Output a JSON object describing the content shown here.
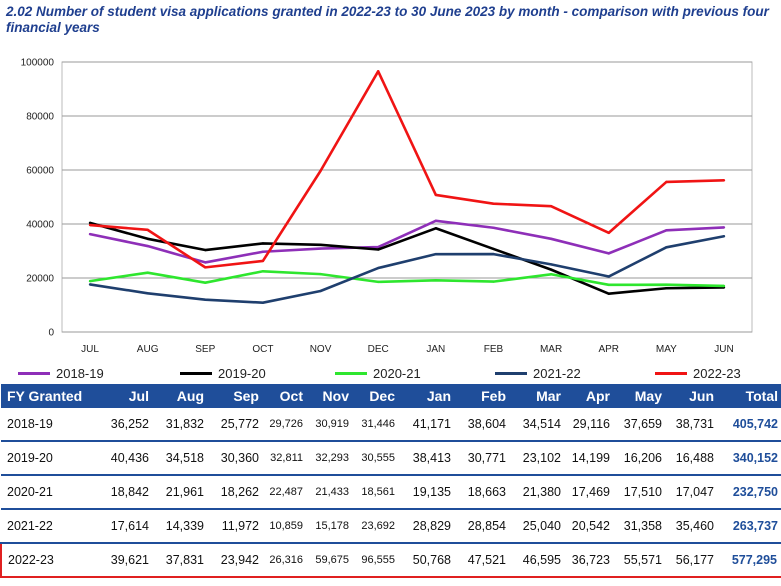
{
  "title": "2.02 Number of student visa applications granted in 2022-23 to 30 June 2023 by month - comparison with previous four financial years",
  "chart_data": {
    "type": "line",
    "categories": [
      "JUL",
      "AUG",
      "SEP",
      "OCT",
      "NOV",
      "DEC",
      "JAN",
      "FEB",
      "MAR",
      "APR",
      "MAY",
      "JUN"
    ],
    "ylim": [
      0,
      100000
    ],
    "yticks": [
      "0",
      "20000",
      "40000",
      "60000",
      "80000",
      "100000"
    ],
    "grid": true,
    "legend_position": "bottom",
    "series": [
      {
        "name": "2018-19",
        "color": "#8e2fb8",
        "values": [
          36252,
          31832,
          25772,
          29726,
          30919,
          31446,
          41171,
          38604,
          34514,
          29116,
          37659,
          38731
        ]
      },
      {
        "name": "2019-20",
        "color": "#000000",
        "values": [
          40436,
          34518,
          30360,
          32811,
          32293,
          30555,
          38413,
          30771,
          23102,
          14199,
          16206,
          16488
        ]
      },
      {
        "name": "2020-21",
        "color": "#2ee62e",
        "values": [
          18842,
          21961,
          18262,
          22487,
          21433,
          18561,
          19135,
          18663,
          21380,
          17469,
          17510,
          17047
        ]
      },
      {
        "name": "2021-22",
        "color": "#1f3f6e",
        "values": [
          17614,
          14339,
          11972,
          10859,
          15178,
          23692,
          28829,
          28854,
          25040,
          20542,
          31358,
          35460
        ]
      },
      {
        "name": "2022-23",
        "color": "#f01414",
        "values": [
          39621,
          37831,
          23942,
          26316,
          59675,
          96555,
          50768,
          47521,
          46595,
          36723,
          55571,
          56177
        ]
      }
    ]
  },
  "table": {
    "headers": [
      "FY Granted",
      "Jul",
      "Aug",
      "Sep",
      "Oct",
      "Nov",
      "Dec",
      "Jan",
      "Feb",
      "Mar",
      "Apr",
      "May",
      "Jun",
      "Total"
    ],
    "rows": [
      {
        "cells": [
          "2018-19",
          "36,252",
          "31,832",
          "25,772",
          "29,726",
          "30,919",
          "31,446",
          "41,171",
          "38,604",
          "34,514",
          "29,116",
          "37,659",
          "38,731",
          "405,742"
        ]
      },
      {
        "cells": [
          "2019-20",
          "40,436",
          "34,518",
          "30,360",
          "32,811",
          "32,293",
          "30,555",
          "38,413",
          "30,771",
          "23,102",
          "14,199",
          "16,206",
          "16,488",
          "340,152"
        ]
      },
      {
        "cells": [
          "2020-21",
          "18,842",
          "21,961",
          "18,262",
          "22,487",
          "21,433",
          "18,561",
          "19,135",
          "18,663",
          "21,380",
          "17,469",
          "17,510",
          "17,047",
          "232,750"
        ]
      },
      {
        "cells": [
          "2021-22",
          "17,614",
          "14,339",
          "11,972",
          "10,859",
          "15,178",
          "23,692",
          "28,829",
          "28,854",
          "25,040",
          "20,542",
          "31,358",
          "35,460",
          "263,737"
        ]
      },
      {
        "cells": [
          "2022-23",
          "39,621",
          "37,831",
          "23,942",
          "26,316",
          "59,675",
          "96,555",
          "50,768",
          "47,521",
          "46,595",
          "36,723",
          "55,571",
          "56,177",
          "577,295"
        ]
      }
    ],
    "highlight_row": 4,
    "header_color": "#1f4e9a",
    "total_color": "#1f4e9a",
    "highlight_color": "#e02020"
  }
}
